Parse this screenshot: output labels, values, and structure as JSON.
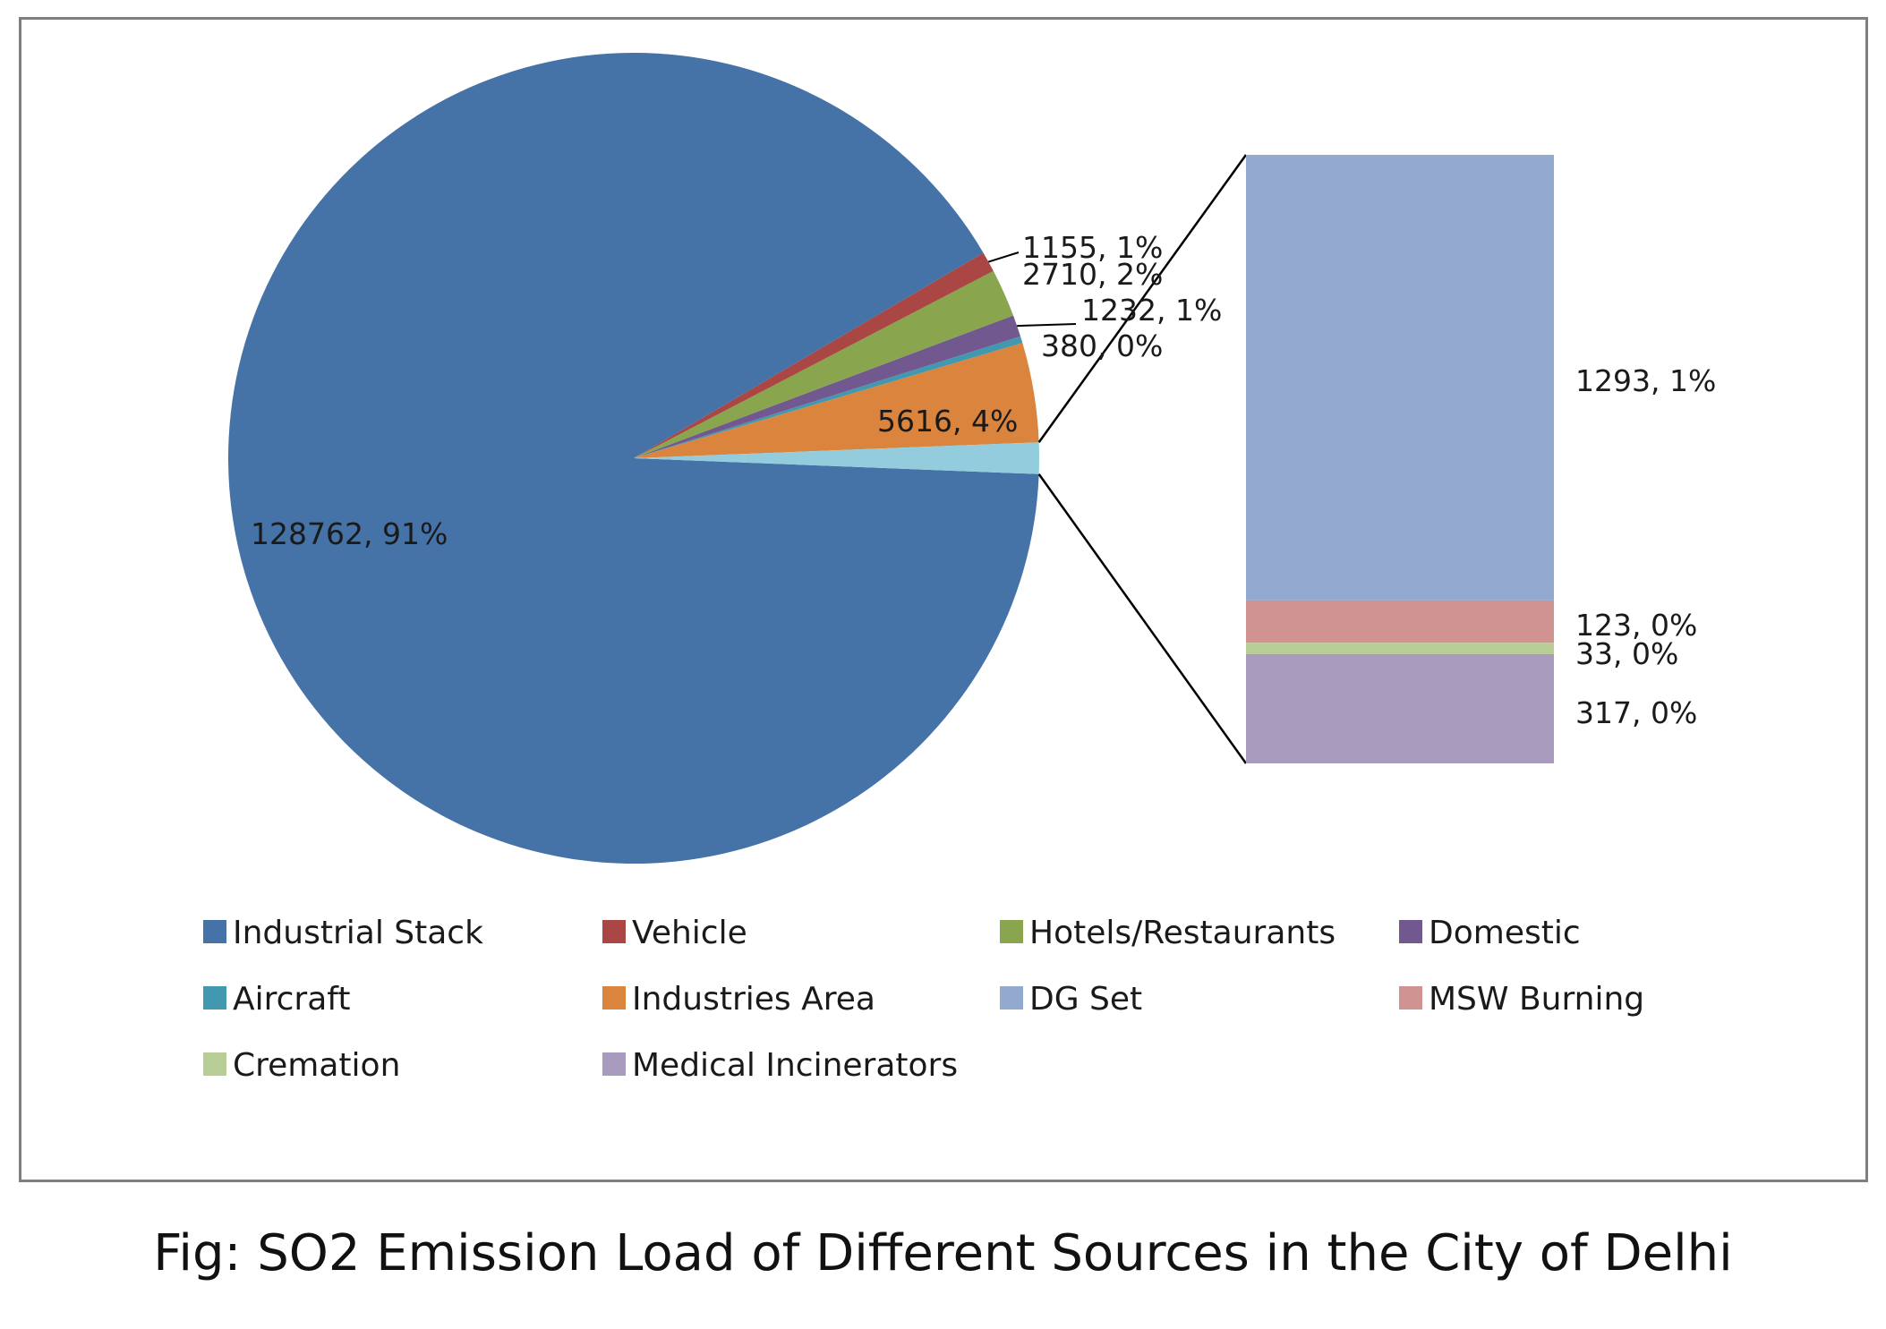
{
  "chart_data": {
    "type": "pie",
    "subtype": "bar-of-pie",
    "slices": [
      {
        "name": "Industrial Stack",
        "value": 128762,
        "label": "128762, 91%",
        "color": "#4572a7"
      },
      {
        "name": "Vehicle",
        "value": 1155,
        "label": "1155, 1%",
        "color": "#aa4643"
      },
      {
        "name": "Hotels/Restaurants",
        "value": 2710,
        "label": "2710, 2%",
        "color": "#89a54e"
      },
      {
        "name": "Domestic",
        "value": 1232,
        "label": "1232, 1%",
        "color": "#71588f"
      },
      {
        "name": "Aircraft",
        "value": 380,
        "label": "380, 0%",
        "color": "#4198af"
      },
      {
        "name": "Industries Area",
        "value": 5616,
        "label": "5616, 4%",
        "color": "#db843d"
      }
    ],
    "other_slice": {
      "value": 1766,
      "color": "#93cddd"
    },
    "bar_segments": [
      {
        "name": "DG Set",
        "value": 1293,
        "label": "1293, 1%",
        "color": "#93a9cf"
      },
      {
        "name": "MSW Burning",
        "value": 123,
        "label": "123, 0%",
        "color": "#d09392"
      },
      {
        "name": "Cremation",
        "value": 33,
        "label": "33, 0%",
        "color": "#b9cd96"
      },
      {
        "name": "Medical Incinerators",
        "value": 317,
        "label": "317, 0%",
        "color": "#a99bbd"
      }
    ],
    "legend": [
      {
        "name": "Industrial Stack",
        "color": "#4572a7"
      },
      {
        "name": "Vehicle",
        "color": "#aa4643"
      },
      {
        "name": "Hotels/Restaurants",
        "color": "#89a54e"
      },
      {
        "name": "Domestic",
        "color": "#71588f"
      },
      {
        "name": "Aircraft",
        "color": "#4198af"
      },
      {
        "name": "Industries Area",
        "color": "#db843d"
      },
      {
        "name": "DG Set",
        "color": "#93a9cf"
      },
      {
        "name": "MSW Burning",
        "color": "#d09392"
      },
      {
        "name": "Cremation",
        "color": "#b9cd96"
      },
      {
        "name": "Medical Incinerators",
        "color": "#a99bbd"
      }
    ],
    "legend_position": "bottom"
  },
  "caption": "Fig: SO2 Emission Load of Different Sources in the City of Delhi"
}
